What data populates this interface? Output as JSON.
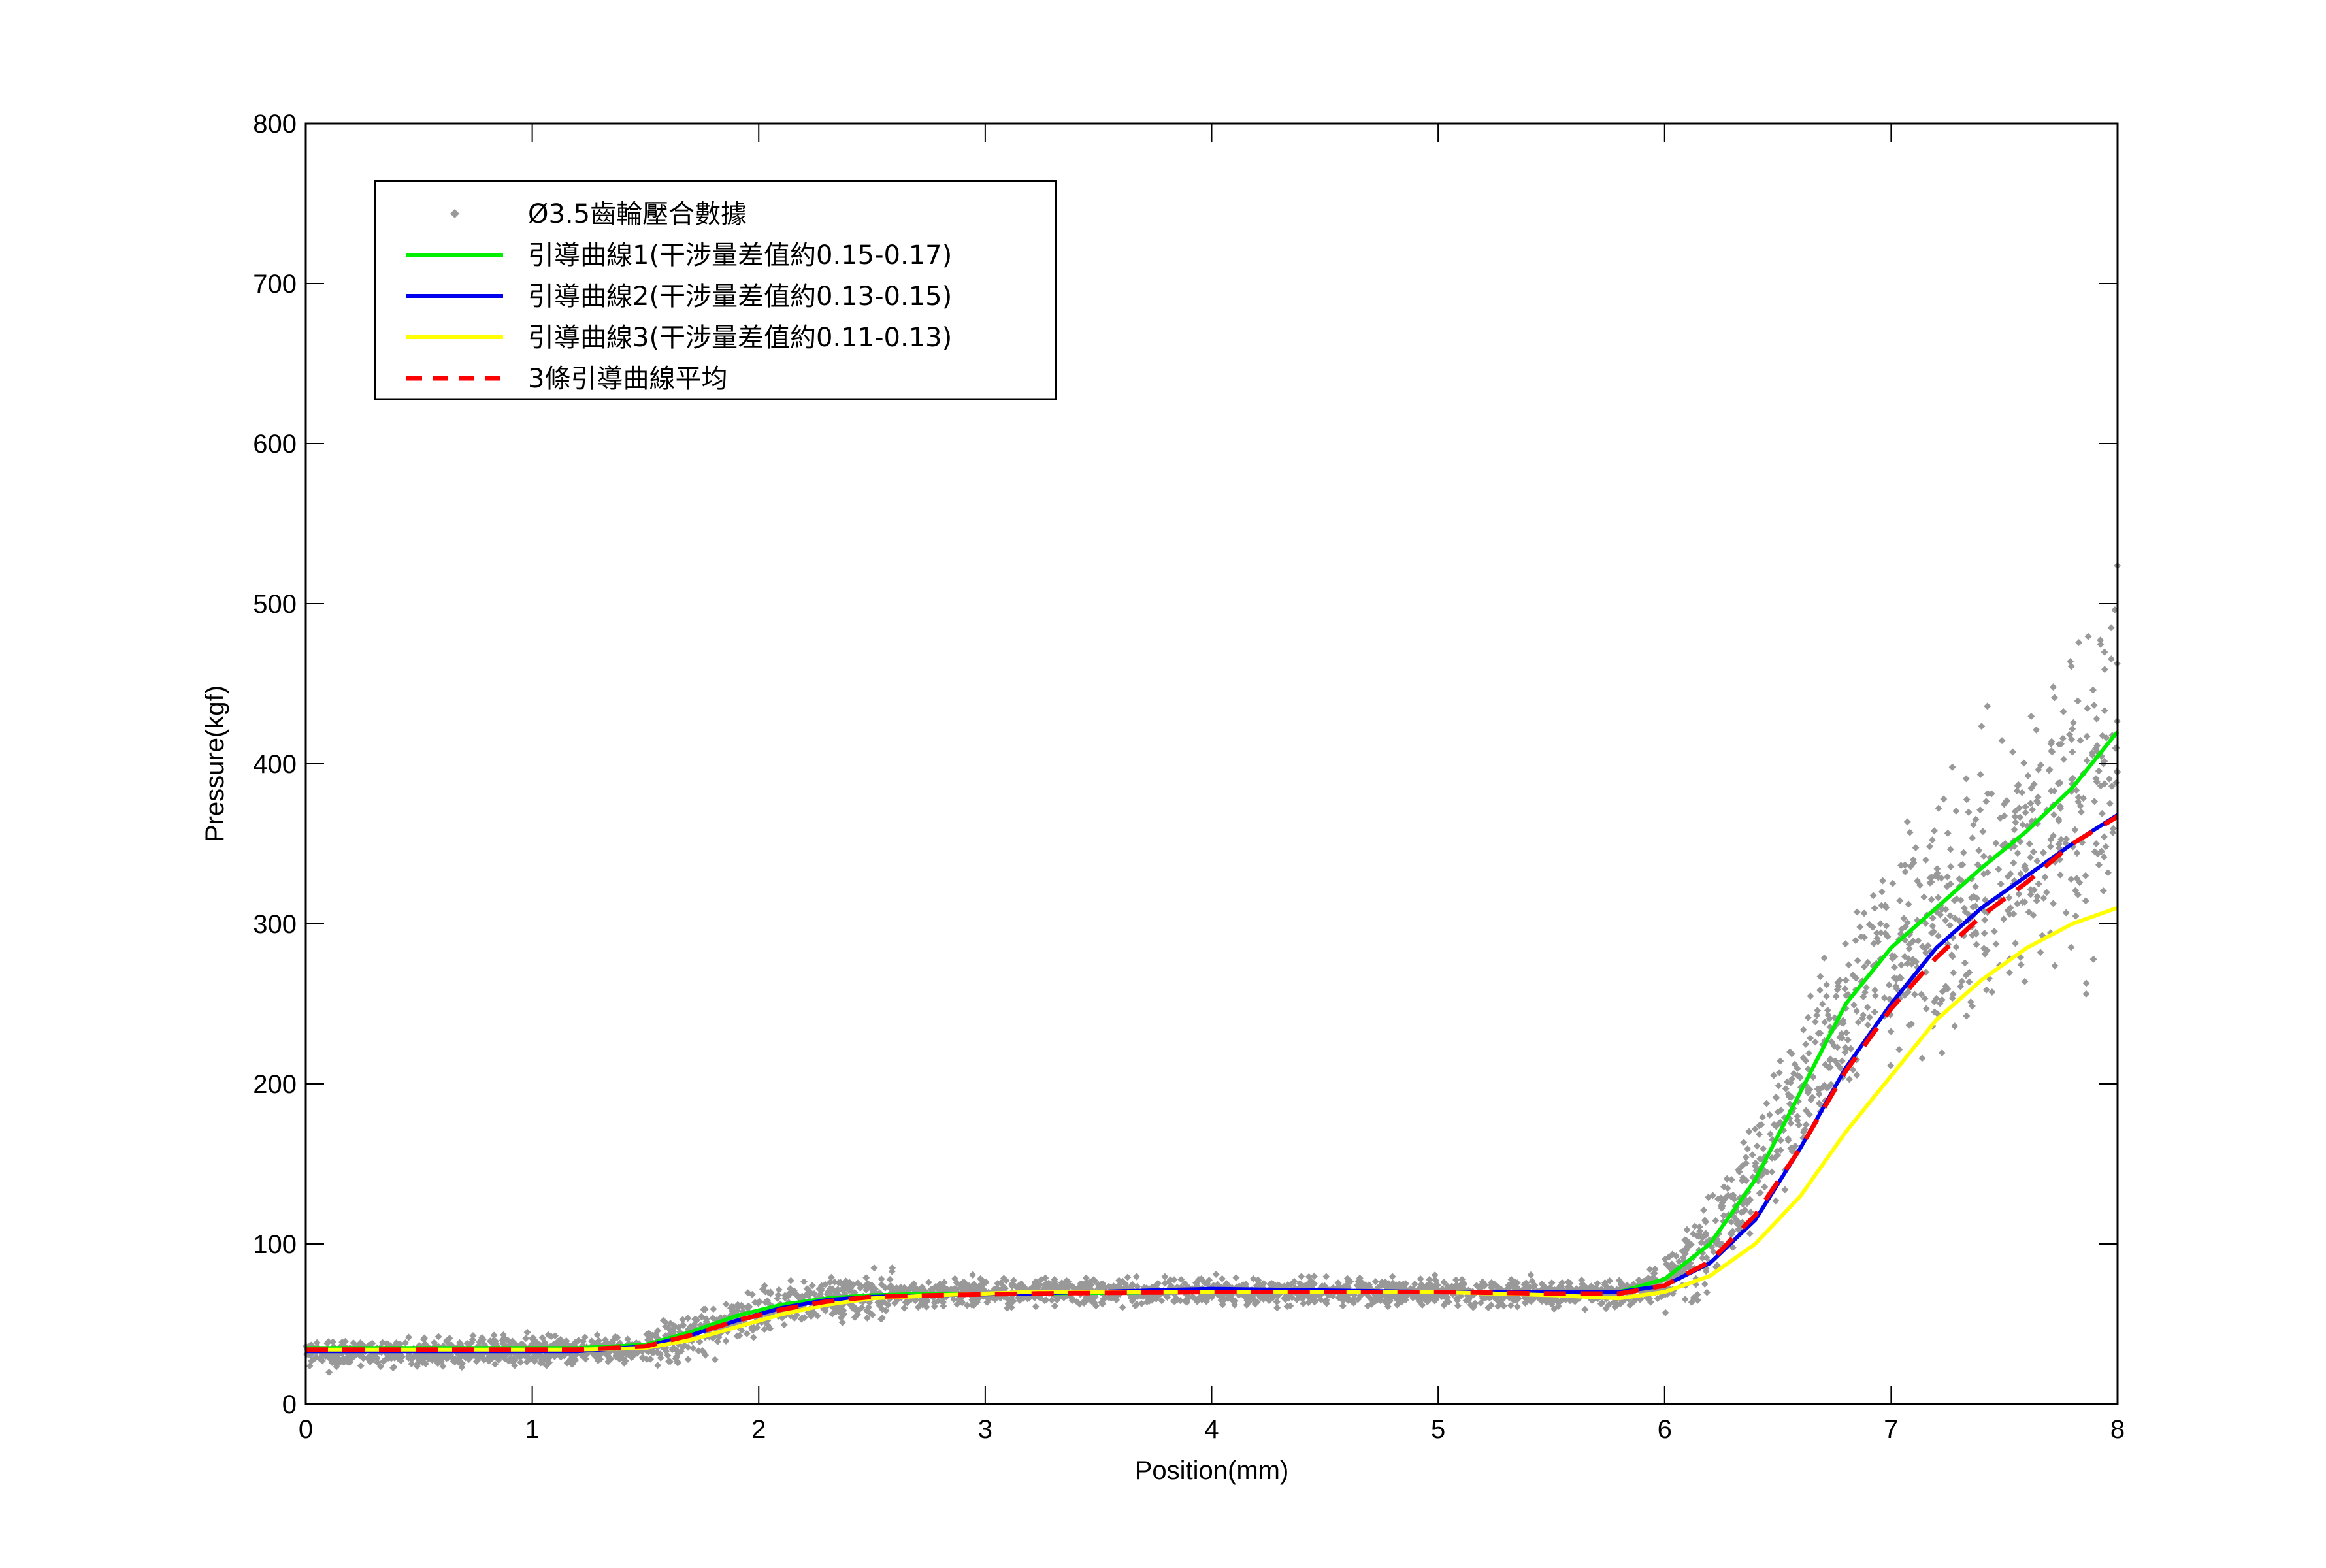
{
  "chart_data": {
    "type": "line",
    "xlabel": "Position(mm)",
    "ylabel": "Pressure(kgf)",
    "xlim": [
      0,
      8
    ],
    "ylim": [
      0,
      800
    ],
    "xticks": [
      "0",
      "1",
      "2",
      "3",
      "4",
      "5",
      "6",
      "7",
      "8"
    ],
    "yticks": [
      "0",
      "100",
      "200",
      "300",
      "400",
      "500",
      "600",
      "700",
      "800"
    ],
    "grid": false,
    "legend_position": "top-left",
    "legend": [
      "Ø3.5齒輪壓合數據",
      "引導曲線1(干涉量差值約0.15-0.17)",
      "引導曲線2(干涉量差值約0.13-0.15)",
      "引導曲線3(干涉量差值約0.11-0.13)",
      "3條引導曲線平均"
    ],
    "series": [
      {
        "name": "Ø3.5齒輪壓合數據",
        "kind": "scatter",
        "color": "#999999",
        "x": [
          0.0,
          0.2,
          0.4,
          0.6,
          0.8,
          1.0,
          1.2,
          1.4,
          1.6,
          1.8,
          2.0,
          2.2,
          2.4,
          2.6,
          2.8,
          3.0,
          3.5,
          4.0,
          4.5,
          5.0,
          5.5,
          5.8,
          6.0,
          6.2,
          6.4,
          6.6,
          6.8,
          7.0,
          7.2,
          7.4,
          7.6,
          7.8,
          8.0
        ],
        "y": [
          32,
          32,
          32,
          32,
          32,
          33,
          33,
          34,
          38,
          48,
          58,
          64,
          67,
          68,
          69,
          70,
          70,
          70,
          70,
          70,
          69,
          69,
          76,
          100,
          145,
          200,
          245,
          280,
          305,
          325,
          345,
          370,
          400
        ]
      },
      {
        "name": "引導曲線1(干涉量差值約0.15-0.17)",
        "kind": "line",
        "color": "#00ee00",
        "x": [
          0.0,
          0.4,
          0.8,
          1.2,
          1.5,
          1.7,
          1.9,
          2.1,
          2.3,
          2.5,
          2.8,
          3.2,
          4.0,
          5.0,
          5.5,
          5.8,
          6.0,
          6.2,
          6.4,
          6.6,
          6.8,
          7.0,
          7.2,
          7.4,
          7.6,
          7.8,
          8.0
        ],
        "y": [
          35,
          35,
          35,
          35,
          37,
          45,
          55,
          62,
          66,
          68,
          69,
          69,
          70,
          70,
          70,
          70,
          78,
          100,
          140,
          195,
          250,
          285,
          310,
          335,
          358,
          385,
          420
        ]
      },
      {
        "name": "引導曲線2(干涉量差值約0.13-0.15)",
        "kind": "line",
        "color": "#0000ee",
        "x": [
          0.0,
          0.4,
          0.8,
          1.2,
          1.5,
          1.7,
          1.9,
          2.1,
          2.3,
          2.5,
          2.8,
          3.2,
          4.0,
          5.0,
          5.5,
          5.8,
          6.0,
          6.2,
          6.4,
          6.6,
          6.8,
          7.0,
          7.2,
          7.4,
          7.6,
          7.8,
          8.0
        ],
        "y": [
          33,
          33,
          33,
          33,
          36,
          43,
          52,
          60,
          65,
          67,
          68,
          69,
          72,
          70,
          70,
          70,
          74,
          88,
          115,
          160,
          210,
          250,
          285,
          310,
          330,
          350,
          368
        ]
      },
      {
        "name": "引導曲線3(干涉量差值約0.11-0.13)",
        "kind": "line",
        "color": "#ffff00",
        "x": [
          0.0,
          0.4,
          0.8,
          1.2,
          1.5,
          1.7,
          1.9,
          2.1,
          2.3,
          2.5,
          2.8,
          3.2,
          4.0,
          5.0,
          5.5,
          5.8,
          6.0,
          6.2,
          6.4,
          6.6,
          6.8,
          7.0,
          7.2,
          7.4,
          7.6,
          7.8,
          8.0
        ],
        "y": [
          34,
          34,
          34,
          34,
          35,
          40,
          48,
          56,
          62,
          66,
          68,
          70,
          70,
          70,
          68,
          66,
          70,
          80,
          100,
          130,
          170,
          205,
          240,
          265,
          285,
          300,
          310
        ]
      },
      {
        "name": "3條引導曲線平均",
        "kind": "dashed-line",
        "color": "#ff0000",
        "x": [
          0.0,
          0.4,
          0.8,
          1.2,
          1.5,
          1.7,
          1.9,
          2.1,
          2.3,
          2.5,
          2.8,
          3.2,
          4.0,
          5.0,
          5.5,
          5.8,
          6.0,
          6.2,
          6.4,
          6.6,
          6.8,
          7.0,
          7.2,
          7.4,
          7.6,
          7.8,
          8.0
        ],
        "y": [
          34,
          34,
          34,
          34,
          36,
          43,
          52,
          59,
          64,
          67,
          68,
          69,
          70,
          70,
          69,
          69,
          74,
          89,
          118,
          160,
          208,
          247,
          279,
          305,
          326,
          350,
          367
        ]
      }
    ]
  }
}
